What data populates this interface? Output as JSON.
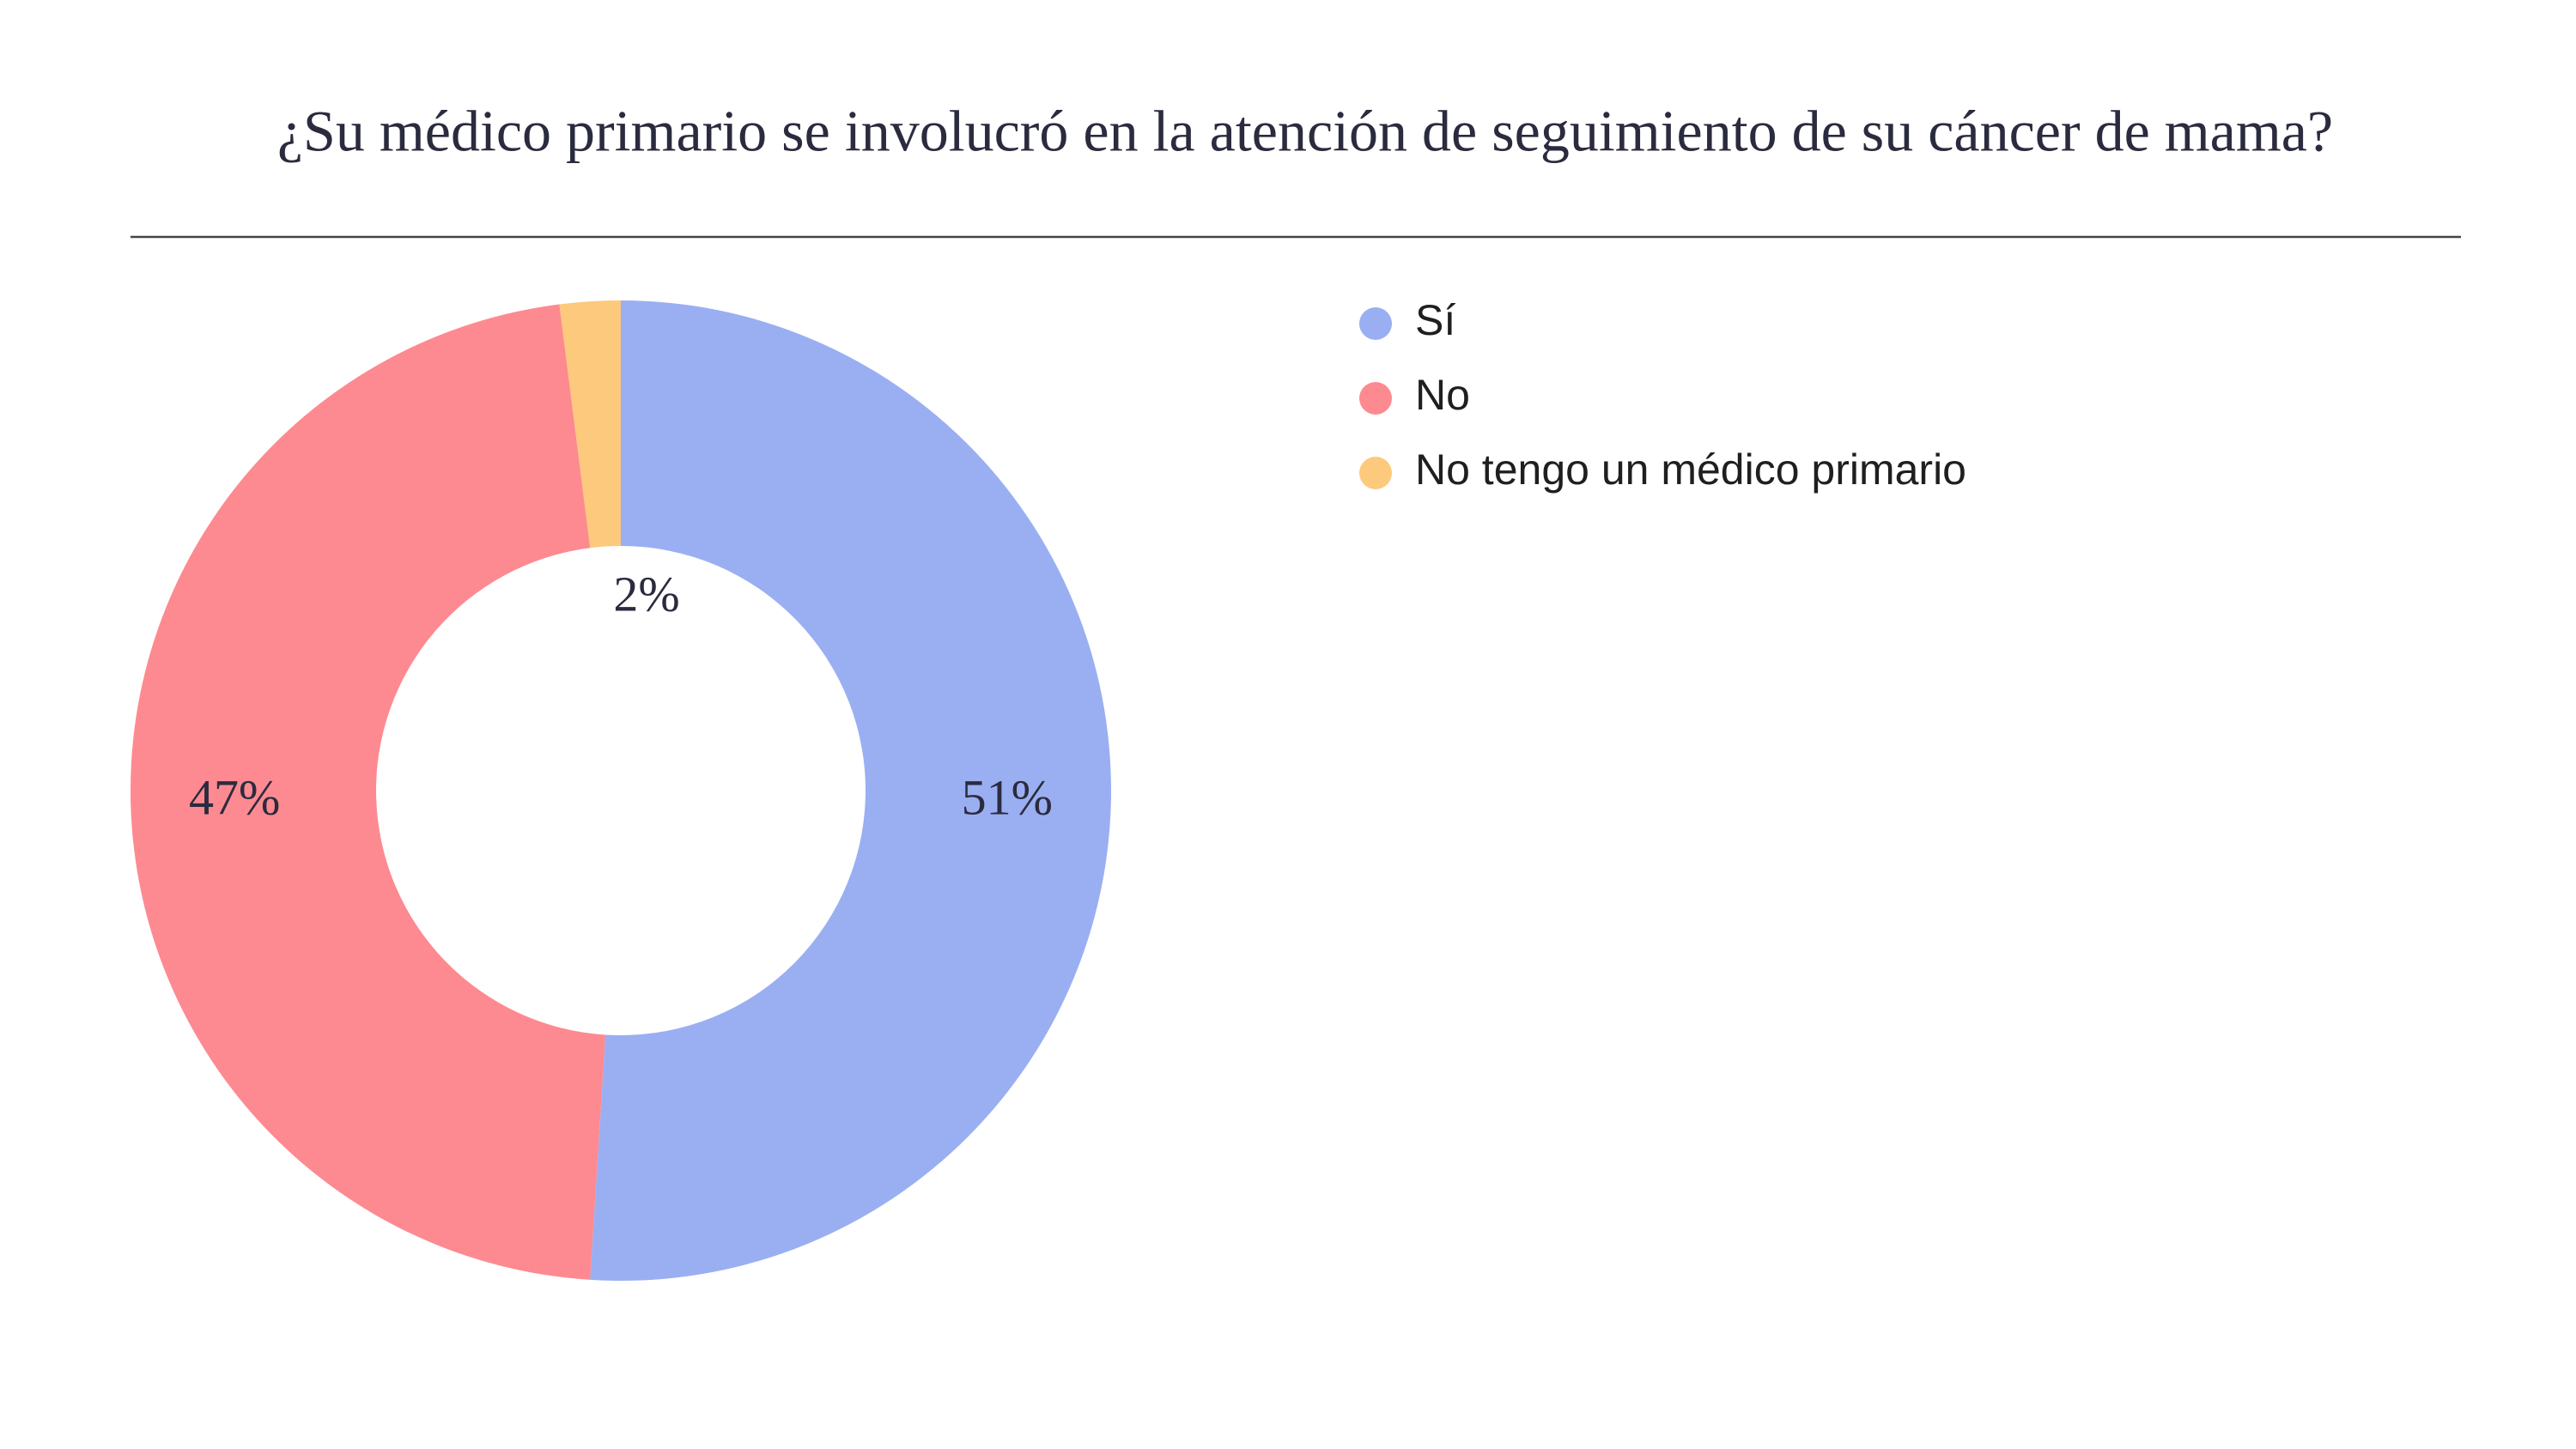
{
  "chart_data": {
    "type": "pie",
    "title": "¿Su médico primario se involucró en la atención de seguimiento de su cáncer de mama?",
    "categories": [
      "Sí",
      "No",
      "No tengo un médico primario"
    ],
    "values": [
      51,
      47,
      2
    ],
    "value_labels": [
      "51%",
      "47%",
      "2%"
    ],
    "colors": [
      "#9aaff2",
      "#fd8a90",
      "#fdc97c"
    ],
    "donut": true,
    "legend": "right"
  }
}
